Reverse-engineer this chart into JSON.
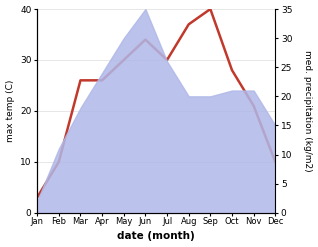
{
  "months": [
    "Jan",
    "Feb",
    "Mar",
    "Apr",
    "May",
    "Jun",
    "Jul",
    "Aug",
    "Sep",
    "Oct",
    "Nov",
    "Dec"
  ],
  "temp": [
    3,
    10,
    26,
    26,
    30,
    34,
    30,
    37,
    40,
    28,
    21,
    10
  ],
  "precip": [
    2,
    11,
    18,
    24,
    30,
    35,
    26,
    20,
    20,
    21,
    21,
    15
  ],
  "temp_color": "#c0392b",
  "precip_color": "#b0b8e8",
  "ylim_temp": [
    0,
    40
  ],
  "ylim_precip": [
    0,
    35
  ],
  "yticks_temp": [
    0,
    10,
    20,
    30,
    40
  ],
  "yticks_precip": [
    0,
    5,
    10,
    15,
    20,
    25,
    30,
    35
  ],
  "ylabel_left": "max temp (C)",
  "ylabel_right": "med. precipitation (kg/m2)",
  "xlabel": "date (month)",
  "temp_linewidth": 1.8,
  "bg_color": "#ffffff"
}
